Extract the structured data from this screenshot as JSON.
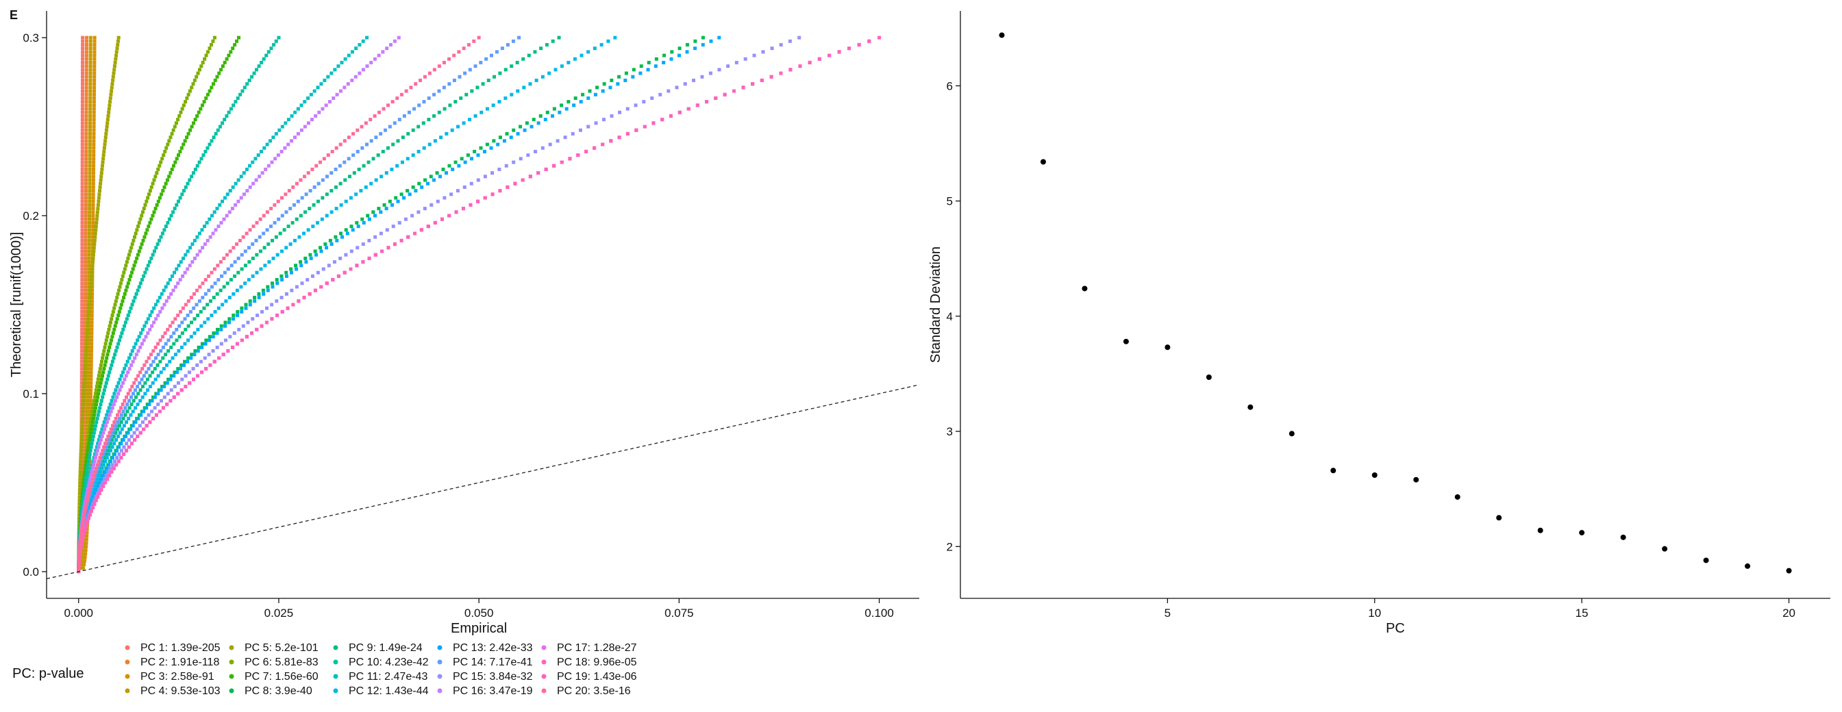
{
  "panel_tag": "E",
  "chart_data": [
    {
      "type": "scatter",
      "title": "",
      "xlabel": "Empirical",
      "ylabel": "Theoretical [runif(1000)]",
      "xlim": [
        -0.004,
        0.105
      ],
      "ylim": [
        -0.015,
        0.315
      ],
      "x_ticks": [
        0.0,
        0.025,
        0.05,
        0.075,
        0.1
      ],
      "x_tick_labels": [
        "0.000",
        "0.025",
        "0.050",
        "0.075",
        "0.100"
      ],
      "y_ticks": [
        0.0,
        0.1,
        0.2,
        0.3
      ],
      "y_tick_labels": [
        "0.0",
        "0.1",
        "0.2",
        "0.3"
      ],
      "grid": false,
      "reference_line": {
        "intercept": 0,
        "slope": 1,
        "style": "dashed"
      },
      "legend": {
        "title": "PC: p-value",
        "placement": "bottom",
        "entries": [
          {
            "label": "PC 1: 1.39e-205",
            "color": "#F8766D",
            "max_empirical": 0.0005
          },
          {
            "label": "PC 2: 1.91e-118",
            "color": "#EA8331",
            "max_empirical": 0.001
          },
          {
            "label": "PC 3: 2.58e-91",
            "color": "#D89000",
            "max_empirical": 0.002
          },
          {
            "label": "PC 4: 9.53e-103",
            "color": "#C09B00",
            "max_empirical": 0.0015
          },
          {
            "label": "PC 5: 5.2e-101",
            "color": "#A3A500",
            "max_empirical": 0.005
          },
          {
            "label": "PC 6: 5.81e-83",
            "color": "#7CAE00",
            "max_empirical": 0.017
          },
          {
            "label": "PC 7: 1.56e-60",
            "color": "#39B600",
            "max_empirical": 0.02
          },
          {
            "label": "PC 8: 3.9e-40",
            "color": "#00BB4E",
            "max_empirical": 0.078
          },
          {
            "label": "PC 9: 1.49e-24",
            "color": "#00BF7D",
            "max_empirical": 0.06
          },
          {
            "label": "PC 10: 4.23e-42",
            "color": "#00C1A3",
            "max_empirical": 0.025
          },
          {
            "label": "PC 11: 2.47e-43",
            "color": "#00BFC4",
            "max_empirical": 0.036
          },
          {
            "label": "PC 12: 1.43e-44",
            "color": "#00B8E7",
            "max_empirical": 0.067
          },
          {
            "label": "PC 13: 2.42e-33",
            "color": "#00A9FF",
            "max_empirical": 0.08
          },
          {
            "label": "PC 14: 7.17e-41",
            "color": "#619CFF",
            "max_empirical": 0.055
          },
          {
            "label": "PC 15: 3.84e-32",
            "color": "#9590FF",
            "max_empirical": 0.09
          },
          {
            "label": "PC 16: 3.47e-19",
            "color": "#C77CFF",
            "max_empirical": 0.04
          },
          {
            "label": "PC 17: 1.28e-27",
            "color": "#E76BF3",
            "max_empirical": 0.1
          },
          {
            "label": "PC 18: 9.96e-05",
            "color": "#FF61C3",
            "max_empirical": 0.1
          },
          {
            "label": "PC 19: 1.43e-06",
            "color": "#FF62BC",
            "max_empirical": 0.1
          },
          {
            "label": "PC 20: 3.5e-16",
            "color": "#FF6A98",
            "max_empirical": 0.05
          }
        ]
      }
    },
    {
      "type": "scatter",
      "title": "",
      "xlabel": "PC",
      "ylabel": "Standard Deviation",
      "xlim": [
        0,
        21
      ],
      "ylim": [
        1.55,
        6.65
      ],
      "x_ticks": [
        5,
        10,
        15,
        20
      ],
      "y_ticks": [
        2,
        3,
        4,
        5,
        6
      ],
      "grid": false,
      "x": [
        1,
        2,
        3,
        4,
        5,
        6,
        7,
        8,
        9,
        10,
        11,
        12,
        13,
        14,
        15,
        16,
        17,
        18,
        19,
        20
      ],
      "y": [
        6.44,
        5.34,
        4.24,
        3.78,
        3.73,
        3.47,
        3.21,
        2.98,
        2.66,
        2.62,
        2.58,
        2.43,
        2.25,
        2.14,
        2.12,
        2.08,
        1.98,
        1.88,
        1.83,
        1.79
      ],
      "point_color": "#000000"
    }
  ]
}
